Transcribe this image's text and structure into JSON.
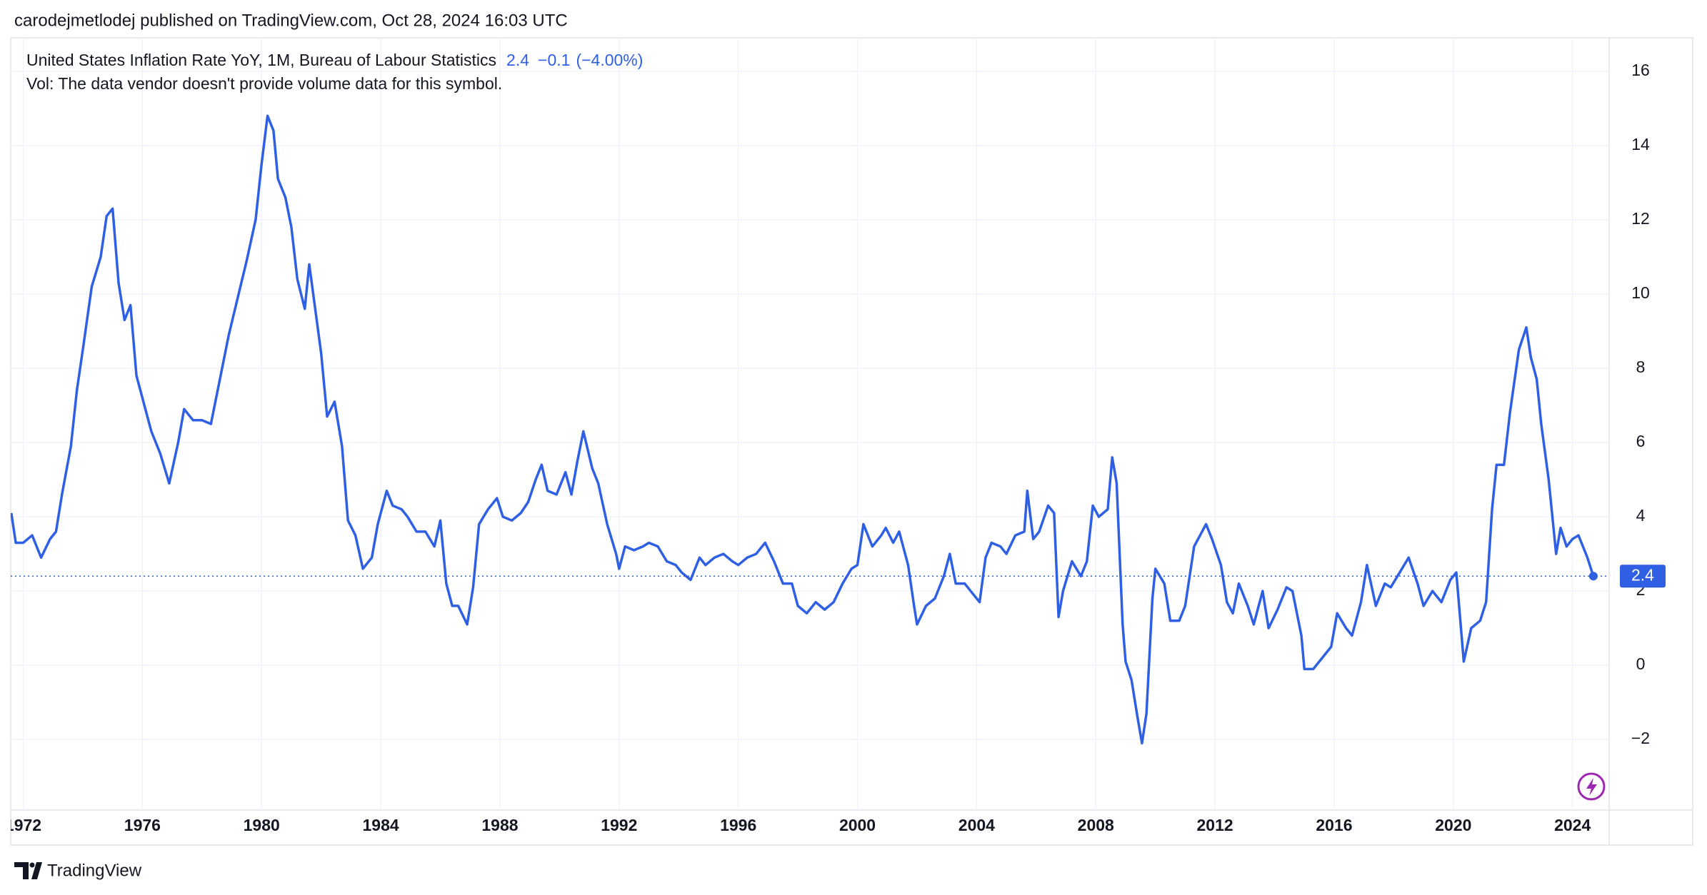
{
  "header": {
    "published": "carodejmetlodej published on TradingView.com, Oct 28, 2024 16:03 UTC"
  },
  "footer": {
    "brand": "TradingView"
  },
  "chart_data": {
    "type": "line",
    "title": "United States Inflation Rate YoY, 1M, Bureau of Labour Statistics",
    "change": "−0.1",
    "change_percent": "(−4.00%)",
    "subtitle": "Vol: The data vendor doesn't provide volume data for this symbol.",
    "color": "#2f5fe3",
    "grid": true,
    "x": [
      1971.6,
      1971.75,
      1972.0,
      1972.3,
      1972.6,
      1972.9,
      1973.1,
      1973.3,
      1973.6,
      1973.8,
      1974.0,
      1974.3,
      1974.6,
      1974.8,
      1975.0,
      1975.2,
      1975.4,
      1975.6,
      1975.8,
      1976.0,
      1976.3,
      1976.6,
      1976.9,
      1977.2,
      1977.4,
      1977.7,
      1978.0,
      1978.3,
      1978.6,
      1978.9,
      1979.2,
      1979.5,
      1979.8,
      1980.0,
      1980.2,
      1980.4,
      1980.55,
      1980.8,
      1981.0,
      1981.2,
      1981.45,
      1981.6,
      1981.8,
      1982.0,
      1982.2,
      1982.45,
      1982.7,
      1982.9,
      1983.15,
      1983.4,
      1983.7,
      1983.9,
      1984.2,
      1984.4,
      1984.7,
      1984.9,
      1985.2,
      1985.5,
      1985.8,
      1986.0,
      1986.2,
      1986.4,
      1986.6,
      1986.9,
      1987.1,
      1987.3,
      1987.6,
      1987.9,
      1988.1,
      1988.4,
      1988.7,
      1988.95,
      1989.2,
      1989.4,
      1989.6,
      1989.9,
      1990.2,
      1990.4,
      1990.6,
      1990.8,
      1991.1,
      1991.3,
      1991.6,
      1991.9,
      1992.0,
      1992.2,
      1992.5,
      1992.8,
      1993.0,
      1993.3,
      1993.6,
      1993.9,
      1994.1,
      1994.4,
      1994.7,
      1994.9,
      1995.2,
      1995.5,
      1995.8,
      1996.0,
      1996.3,
      1996.6,
      1996.9,
      1997.2,
      1997.5,
      1997.8,
      1998.0,
      1998.3,
      1998.6,
      1998.9,
      1999.2,
      1999.5,
      1999.8,
      2000.0,
      2000.2,
      2000.5,
      2000.8,
      2000.95,
      2001.2,
      2001.4,
      2001.7,
      2001.9,
      2002.0,
      2002.3,
      2002.6,
      2002.9,
      2003.1,
      2003.3,
      2003.6,
      2003.9,
      2004.1,
      2004.3,
      2004.5,
      2004.8,
      2005.0,
      2005.3,
      2005.6,
      2005.7,
      2005.9,
      2006.1,
      2006.4,
      2006.6,
      2006.75,
      2006.9,
      2007.2,
      2007.5,
      2007.7,
      2007.9,
      2008.1,
      2008.4,
      2008.55,
      2008.7,
      2008.9,
      2009.0,
      2009.2,
      2009.4,
      2009.55,
      2009.7,
      2009.9,
      2010.0,
      2010.3,
      2010.5,
      2010.8,
      2011.0,
      2011.3,
      2011.7,
      2011.9,
      2012.2,
      2012.4,
      2012.6,
      2012.8,
      2013.1,
      2013.3,
      2013.6,
      2013.8,
      2014.1,
      2014.4,
      2014.6,
      2014.9,
      2015.0,
      2015.3,
      2015.6,
      2015.9,
      2016.1,
      2016.4,
      2016.6,
      2016.9,
      2017.1,
      2017.4,
      2017.7,
      2017.9,
      2018.2,
      2018.5,
      2018.8,
      2019.0,
      2019.3,
      2019.6,
      2019.9,
      2020.1,
      2020.35,
      2020.6,
      2020.9,
      2021.1,
      2021.3,
      2021.45,
      2021.7,
      2021.9,
      2022.2,
      2022.45,
      2022.6,
      2022.8,
      2022.95,
      2023.2,
      2023.45,
      2023.6,
      2023.8,
      2024.0,
      2024.2,
      2024.5,
      2024.7
    ],
    "values": [
      4.1,
      3.3,
      3.3,
      3.5,
      2.9,
      3.4,
      3.6,
      4.6,
      5.9,
      7.4,
      8.5,
      10.2,
      11.0,
      12.1,
      12.3,
      10.3,
      9.3,
      9.7,
      7.8,
      7.2,
      6.3,
      5.7,
      4.9,
      6.0,
      6.9,
      6.6,
      6.6,
      6.5,
      7.7,
      8.9,
      9.9,
      10.9,
      12.0,
      13.5,
      14.8,
      14.4,
      13.1,
      12.6,
      11.8,
      10.4,
      9.6,
      10.8,
      9.6,
      8.4,
      6.7,
      7.1,
      5.9,
      3.9,
      3.5,
      2.6,
      2.9,
      3.8,
      4.7,
      4.3,
      4.2,
      4.0,
      3.6,
      3.6,
      3.2,
      3.9,
      2.2,
      1.6,
      1.6,
      1.1,
      2.1,
      3.8,
      4.2,
      4.5,
      4.0,
      3.9,
      4.1,
      4.4,
      5.0,
      5.4,
      4.7,
      4.6,
      5.2,
      4.6,
      5.5,
      6.3,
      5.3,
      4.9,
      3.8,
      3.0,
      2.6,
      3.2,
      3.1,
      3.2,
      3.3,
      3.2,
      2.8,
      2.7,
      2.5,
      2.3,
      2.9,
      2.7,
      2.9,
      3.0,
      2.8,
      2.7,
      2.9,
      3.0,
      3.3,
      2.8,
      2.2,
      2.2,
      1.6,
      1.4,
      1.7,
      1.5,
      1.7,
      2.2,
      2.6,
      2.7,
      3.8,
      3.2,
      3.5,
      3.7,
      3.3,
      3.6,
      2.7,
      1.6,
      1.1,
      1.6,
      1.8,
      2.4,
      3.0,
      2.2,
      2.2,
      1.9,
      1.7,
      2.9,
      3.3,
      3.2,
      3.0,
      3.5,
      3.6,
      4.7,
      3.4,
      3.6,
      4.3,
      4.1,
      1.3,
      2.0,
      2.8,
      2.4,
      2.8,
      4.3,
      4.0,
      4.2,
      5.6,
      4.9,
      1.1,
      0.1,
      -0.4,
      -1.4,
      -2.1,
      -1.3,
      1.8,
      2.6,
      2.2,
      1.2,
      1.2,
      1.6,
      3.2,
      3.8,
      3.4,
      2.7,
      1.7,
      1.4,
      2.2,
      1.6,
      1.1,
      2.0,
      1.0,
      1.5,
      2.1,
      2.0,
      0.8,
      -0.1,
      -0.1,
      0.2,
      0.5,
      1.4,
      1.0,
      0.8,
      1.7,
      2.7,
      1.6,
      2.2,
      2.1,
      2.5,
      2.9,
      2.2,
      1.6,
      2.0,
      1.7,
      2.3,
      2.5,
      0.1,
      1.0,
      1.2,
      1.7,
      4.2,
      5.4,
      5.4,
      6.8,
      8.5,
      9.1,
      8.3,
      7.7,
      6.5,
      5.0,
      3.0,
      3.7,
      3.2,
      3.4,
      3.5,
      2.9,
      2.4
    ],
    "xlim": [
      1971.58,
      2025.23
    ],
    "ylim": [
      -3.9,
      16.9
    ],
    "xticks": [
      1972,
      1976,
      1980,
      1984,
      1988,
      1992,
      1996,
      2000,
      2004,
      2008,
      2012,
      2016,
      2020,
      2024
    ],
    "yticks": [
      {
        "value": -2,
        "label": "−2"
      },
      0,
      2,
      4,
      6,
      8,
      10,
      12,
      14,
      16
    ]
  }
}
